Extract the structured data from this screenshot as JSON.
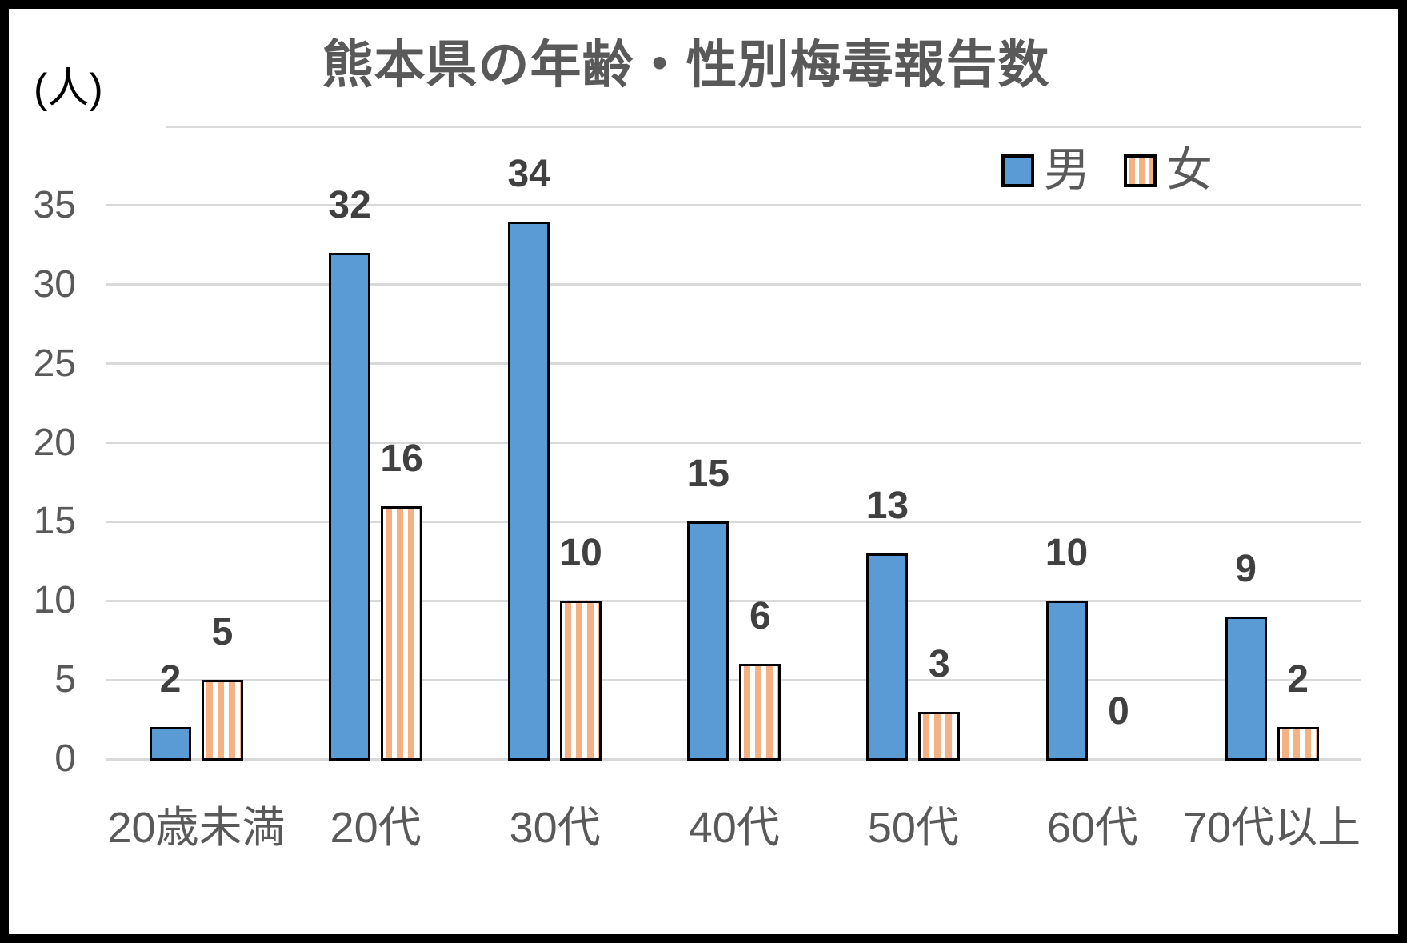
{
  "meta": {
    "background_color": "#FFFFFF",
    "frame_border_color": "#000000",
    "gridline_color": "#D9D9D9",
    "title_color": "#595959",
    "axis_label_color": "#595959",
    "value_label_color": "#404040"
  },
  "chart_data": {
    "type": "bar",
    "title": "熊本県の年齢・性別梅毒報告数",
    "ylabel": "(人)",
    "xlabel": "",
    "categories": [
      "20歳未満",
      "20代",
      "30代",
      "40代",
      "50代",
      "60代",
      "70代以上"
    ],
    "series": [
      {
        "name": "男",
        "values": [
          2,
          32,
          34,
          15,
          13,
          10,
          9
        ],
        "color": "#5B9BD5",
        "pattern": "solid"
      },
      {
        "name": "女",
        "values": [
          5,
          16,
          10,
          6,
          3,
          0,
          2
        ],
        "color": "#F4B183",
        "pattern": "vertical-stripes"
      }
    ],
    "ylim": [
      0,
      40
    ],
    "ytick_interval": 5,
    "yticks_labeled": [
      0,
      5,
      10,
      15,
      20,
      25,
      30,
      35
    ],
    "grid": true,
    "legend_position": "top-right",
    "data_labels": true
  }
}
